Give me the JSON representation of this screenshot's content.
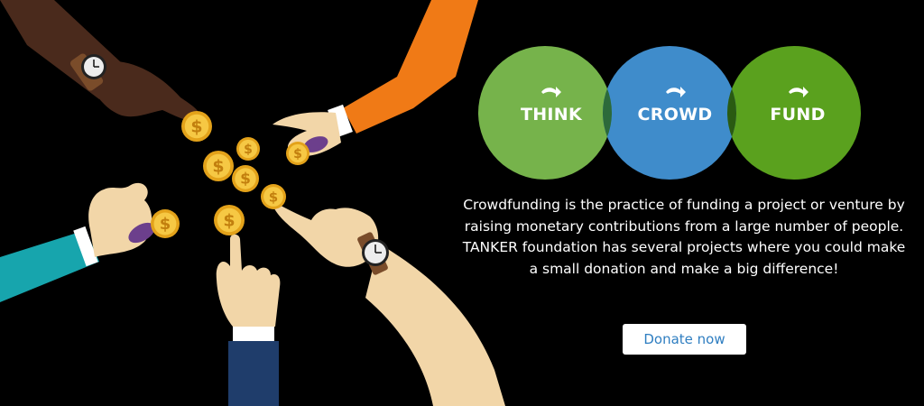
{
  "venn": {
    "think": "THINK",
    "crowd": "CROWD",
    "fund": "FUND"
  },
  "colors": {
    "think": "#76b34b",
    "crowd": "#3f8ccb",
    "fund": "#5aa11e",
    "overlap_left": "#2c6a3a",
    "overlap_right": "#2a5b12",
    "button_text": "#2f7ec1"
  },
  "description": "Crowdfunding is the practice of funding a project or venture by raising monetary contributions from a large number of people. TANKER foundation has several projects where you could make a small donation and make a big difference!",
  "cta": {
    "label": "Donate now"
  },
  "illustration": {
    "icons": [
      "coin-icon",
      "hand-icon",
      "watch-icon"
    ],
    "coin_symbol": "$"
  }
}
